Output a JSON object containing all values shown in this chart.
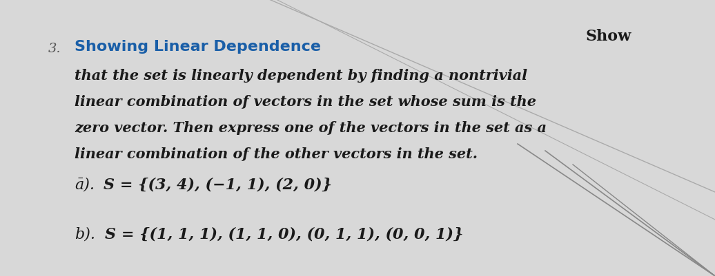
{
  "background_color": "#d8d8d8",
  "number": "3.",
  "title": "Showing Linear Dependence",
  "title_color": "#1a5fa8",
  "show_text": "Show",
  "body_text_line1": "that the set is linearly dependent by finding a nontrivial",
  "body_text_line2": "linear combination of vectors in the set whose sum is the",
  "body_text_line3": "zero vector. Then express one of the vectors in the set as a",
  "body_text_line4": "linear combination of the other vectors in the set.",
  "part_a_label": "ā).",
  "part_a_text": "S = {(3, 4), (−1, 1), (2, 0)}",
  "part_b_label": "b).",
  "part_b_text": "S = {(1, 1, 1), (1, 1, 0), (0, 1, 1), (0, 0, 1)}",
  "text_color": "#1a1a1a",
  "font_size_title": 16,
  "font_size_body": 15,
  "font_size_parts": 16,
  "font_size_number": 14
}
